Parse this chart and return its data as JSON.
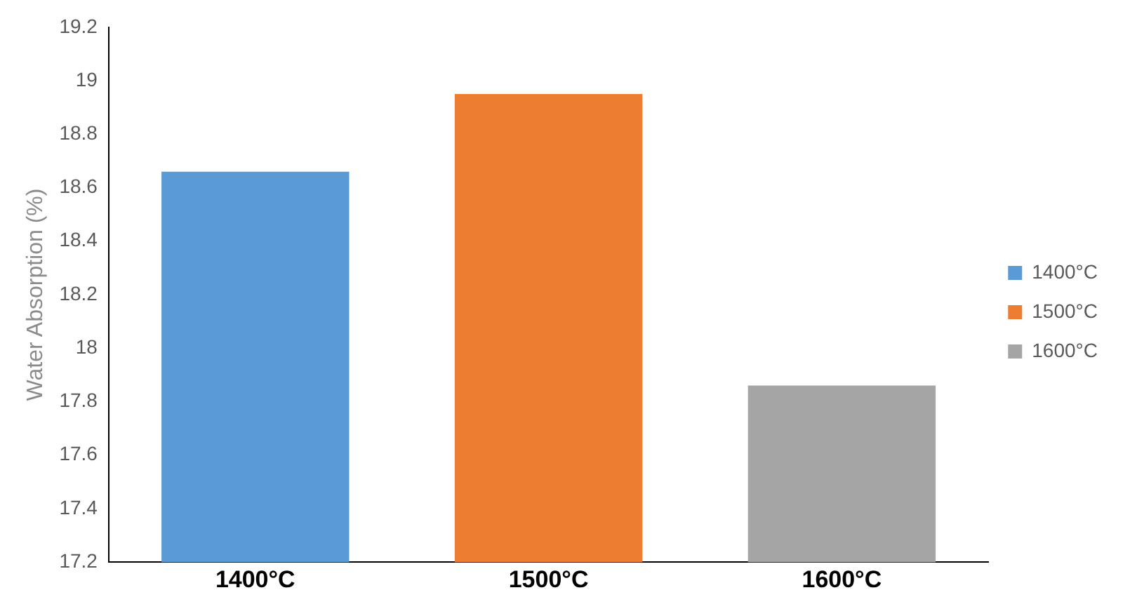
{
  "chart_data": {
    "type": "bar",
    "ylabel": "Water Absorption (%)",
    "categories": [
      "1400°C",
      "1500°C",
      "1600°C"
    ],
    "series": [
      {
        "name": "1400°C",
        "color": "#5b9bd5",
        "values": [
          18.66,
          null,
          null
        ]
      },
      {
        "name": "1500°C",
        "color": "#ed7d31",
        "values": [
          null,
          18.95,
          null
        ]
      },
      {
        "name": "1600°C",
        "color": "#a5a5a5",
        "values": [
          null,
          null,
          17.86
        ]
      }
    ],
    "ylim": [
      17.2,
      19.2
    ],
    "yticks": [
      17.2,
      17.4,
      17.6,
      17.8,
      18,
      18.2,
      18.4,
      18.6,
      18.8,
      19,
      19.2
    ],
    "grid": false,
    "legend": "right"
  }
}
